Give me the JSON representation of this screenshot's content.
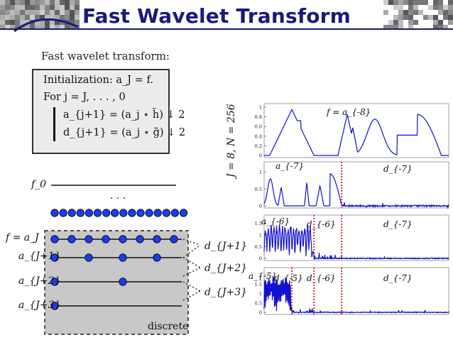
{
  "slide": {
    "title": "Fast Wavelet Transform",
    "subtitle": "Fast wavelet transform:"
  },
  "algorithm": {
    "init": "Initialization: a_J = f.",
    "loop": "For j = J, . . . , 0",
    "eq1": "a_{j+1} = (a_j ⋆ h̃) ↓ 2",
    "eq2": "d_{j+1} = (a_j ⋆ g̃) ↓ 2"
  },
  "diagram": {
    "f0_label": "f_0",
    "ellipsis": ". . .",
    "row_labels": [
      "f = a_J",
      "a_{J+1}",
      "a_{J+2}",
      "a_{J+3}"
    ],
    "detail_labels": [
      "d_{J+1}",
      "d_{J+2}",
      "d_{J+3}"
    ],
    "discrete_label": "discrete",
    "dot_counts": [
      16,
      8,
      4,
      2,
      1
    ],
    "colors": {
      "dot": "#1a3cf0",
      "box": "#c8c8c8"
    }
  },
  "figure": {
    "side_label": "J = 8, N = 256",
    "panels": [
      {
        "labels": [
          "f = a_{-8}"
        ],
        "yticks": [
          "0",
          "0.2",
          "0.4",
          "0.6",
          "0.8",
          "1"
        ]
      },
      {
        "labels": [
          "a_{-7}",
          "d_{-7}"
        ],
        "yticks": [
          "0",
          "0.5",
          "1"
        ]
      },
      {
        "labels": [
          "a_{-6}",
          "d_{-6}",
          "d_{-7}"
        ],
        "yticks": [
          "0",
          "0.5",
          "1",
          "1.5"
        ]
      },
      {
        "labels": [
          "a_{-5}",
          "d_{-5}",
          "d_{-6}",
          "d_{-7}"
        ],
        "yticks": [
          "0",
          "0.5",
          "1",
          "1.5",
          "2"
        ]
      }
    ],
    "colors": {
      "signal": "#1010d0",
      "separator": "#c00000"
    }
  }
}
